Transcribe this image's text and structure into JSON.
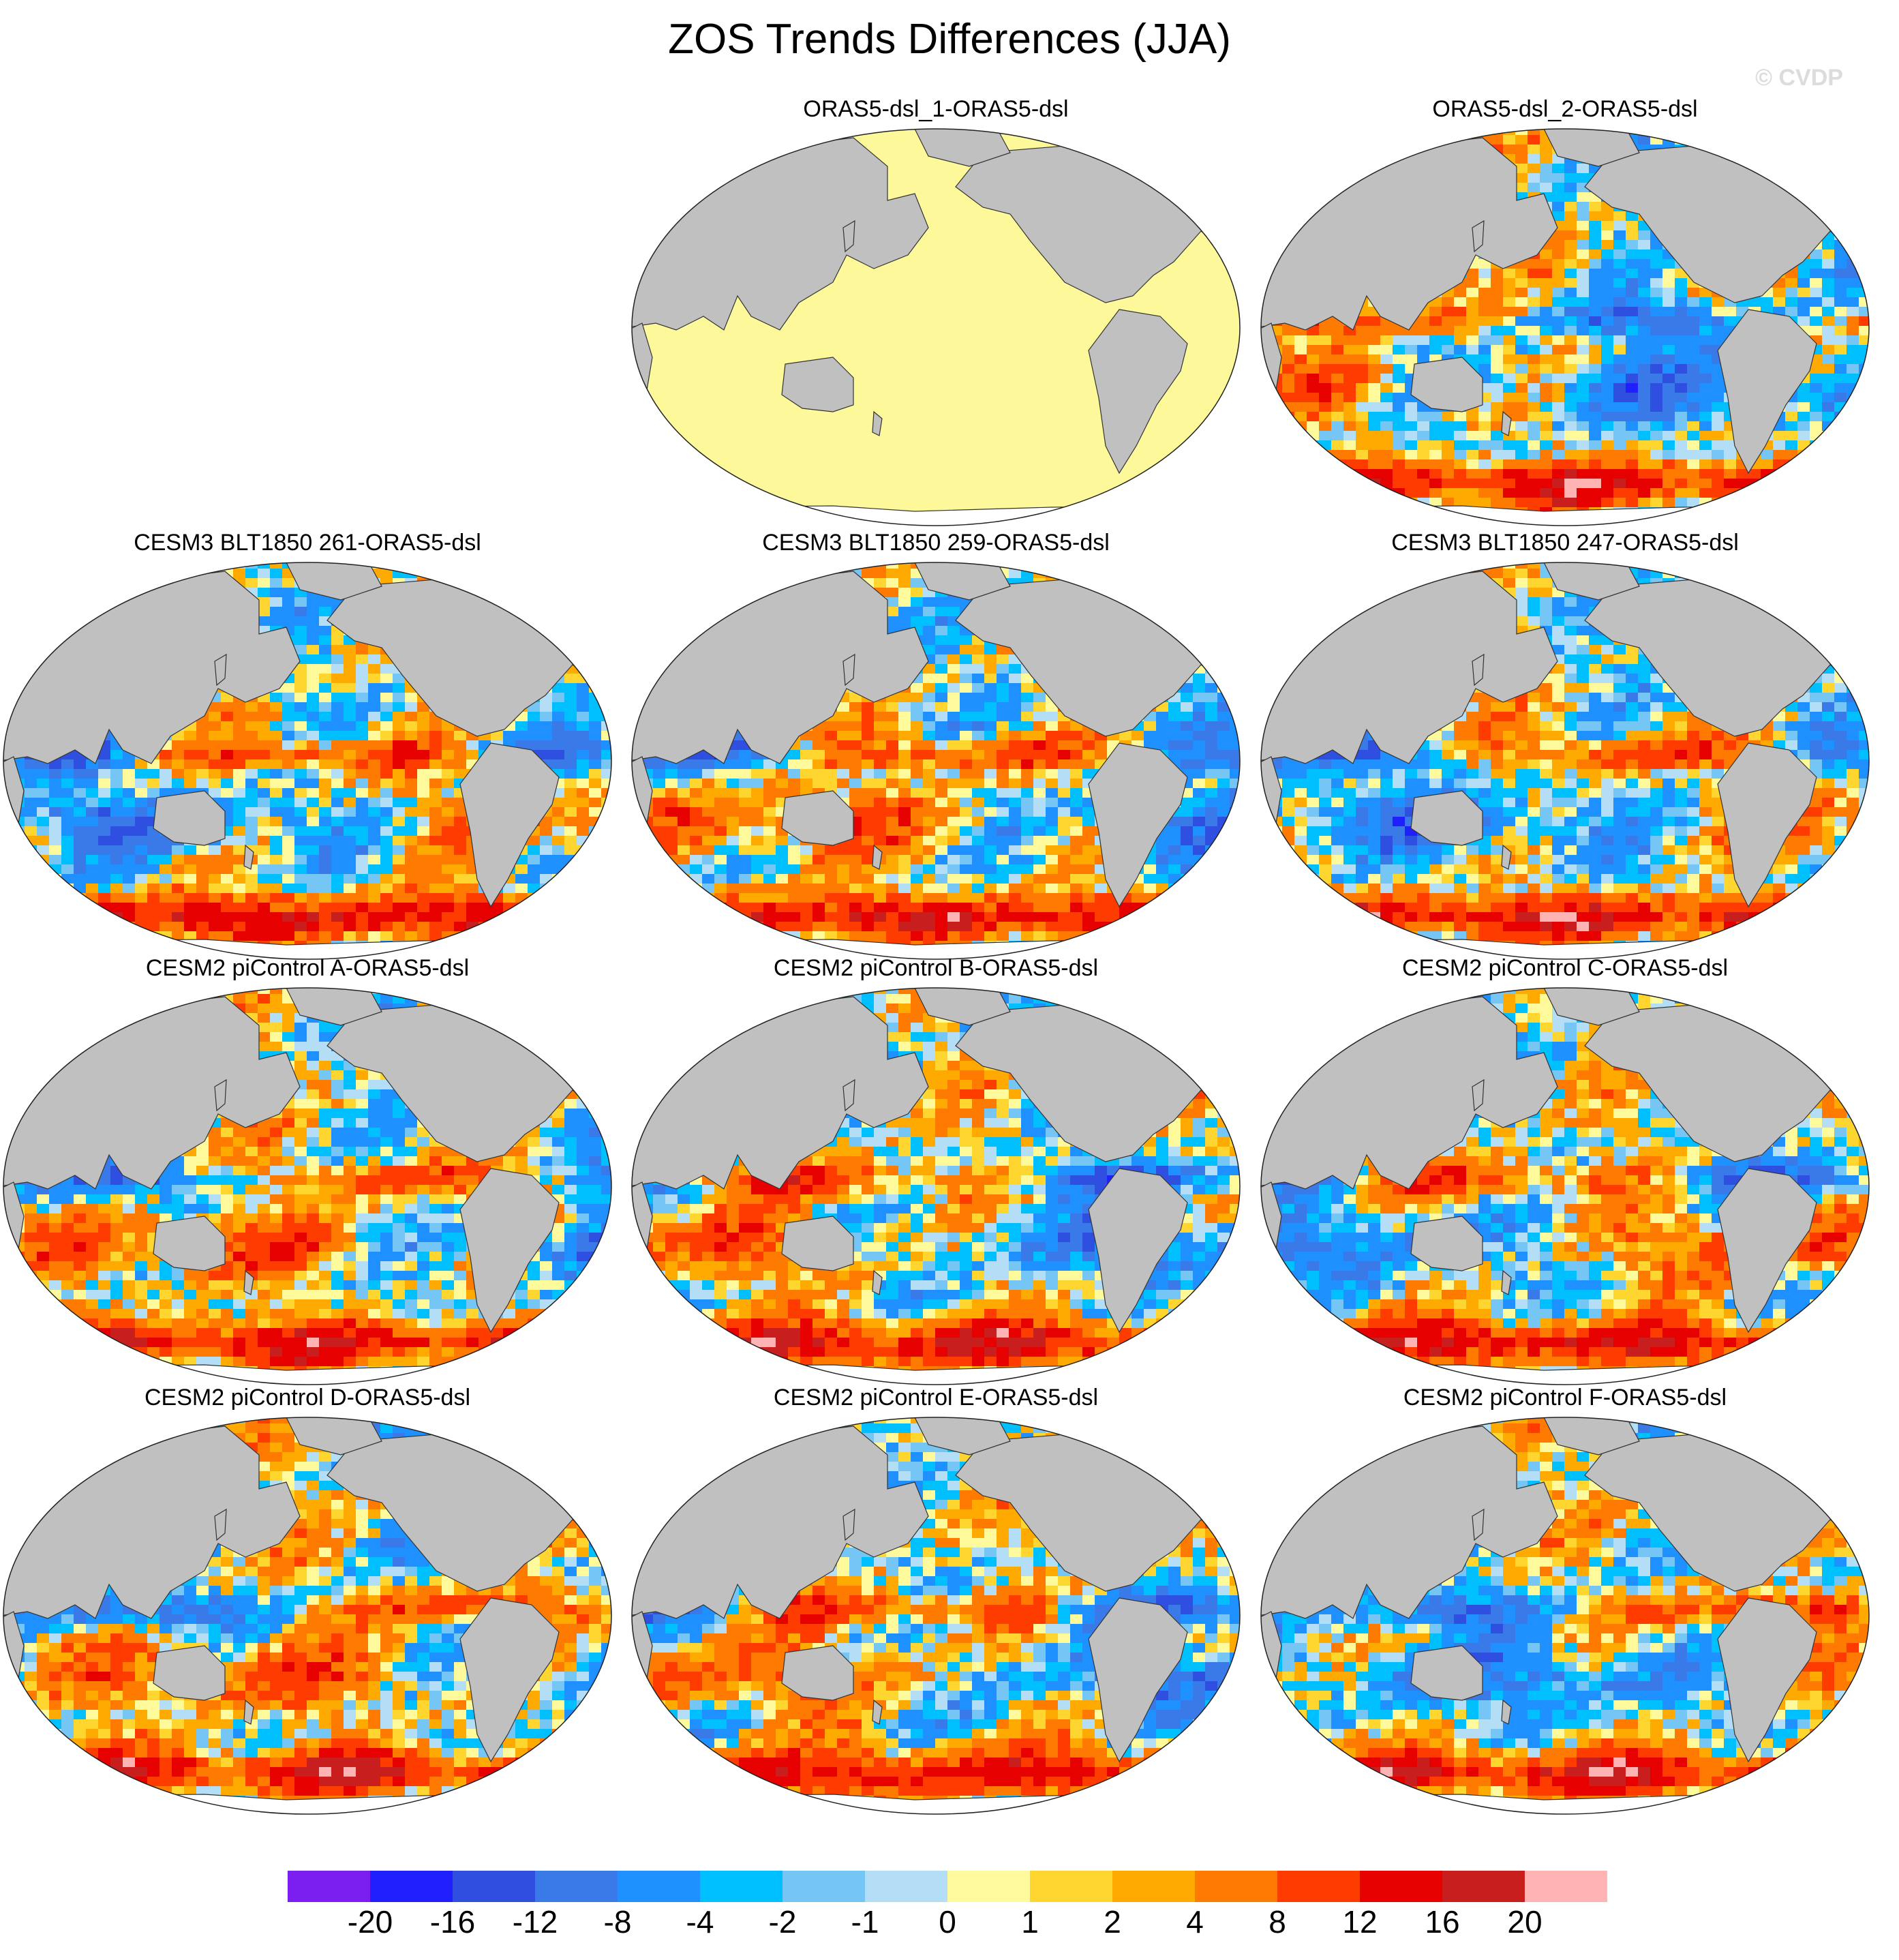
{
  "title": "ZOS Trends Differences (JJA)",
  "credit": "© CVDP",
  "colors": {
    "land": "#c0c0c0",
    "uniform_field": "#fdf89a",
    "outline": "#333333"
  },
  "panels": [
    {
      "title": "ORAS5-dsl_1-ORAS5-dsl",
      "uniform": true
    },
    {
      "title": "ORAS5-dsl_2-ORAS5-dsl",
      "uniform": false,
      "seed": 7
    },
    {
      "title": "CESM3 BLT1850 261-ORAS5-dsl",
      "uniform": false,
      "seed": 11
    },
    {
      "title": "CESM3 BLT1850 259-ORAS5-dsl",
      "uniform": false,
      "seed": 17
    },
    {
      "title": "CESM3 BLT1850 247-ORAS5-dsl",
      "uniform": false,
      "seed": 23
    },
    {
      "title": "CESM2 piControl A-ORAS5-dsl",
      "uniform": false,
      "seed": 29
    },
    {
      "title": "CESM2 piControl B-ORAS5-dsl",
      "uniform": false,
      "seed": 31
    },
    {
      "title": "CESM2 piControl C-ORAS5-dsl",
      "uniform": false,
      "seed": 37
    },
    {
      "title": "CESM2 piControl D-ORAS5-dsl",
      "uniform": false,
      "seed": 41
    },
    {
      "title": "CESM2 piControl E-ORAS5-dsl",
      "uniform": false,
      "seed": 43
    },
    {
      "title": "CESM2 piControl F-ORAS5-dsl",
      "uniform": false,
      "seed": 47
    }
  ],
  "colorbar": {
    "labels": [
      "-20",
      "-16",
      "-12",
      "-8",
      "-4",
      "-2",
      "-1",
      "0",
      "1",
      "2",
      "4",
      "8",
      "12",
      "16",
      "20"
    ],
    "colors": [
      "#7b1ff0",
      "#2020ff",
      "#2f4fe0",
      "#3a7ae8",
      "#1e90ff",
      "#00bfff",
      "#75c6f5",
      "#b3def5",
      "#fefa9c",
      "#ffd530",
      "#ffaa00",
      "#ff7a00",
      "#ff3c00",
      "#e60000",
      "#c81e1e",
      "#ffb3b3"
    ]
  }
}
